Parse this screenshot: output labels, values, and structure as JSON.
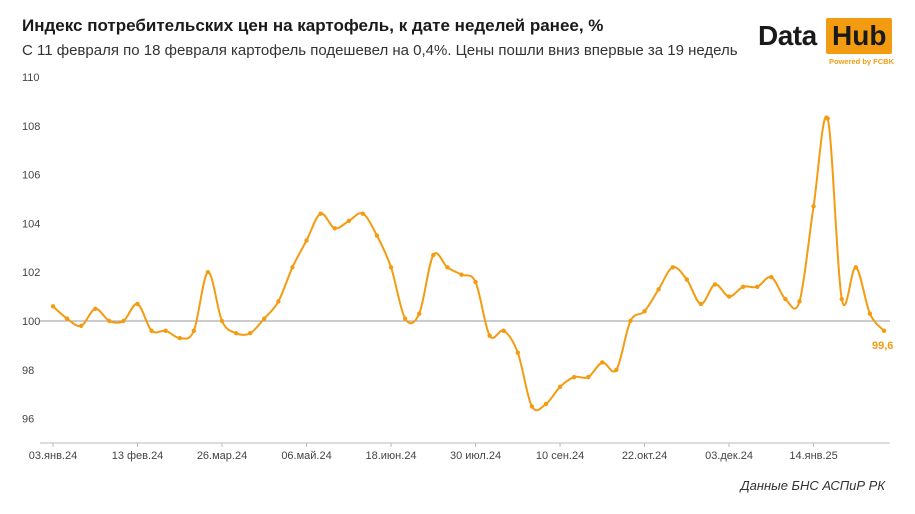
{
  "title": "Индекс потребительских цен на картофель, к дате неделей ранее, %",
  "subtitle": "С 11 февраля по 18 февраля картофель подешевел на 0,4%. Цены пошли вниз впервые за 19 недель",
  "logo": {
    "word1": "Data",
    "word2": "Hub",
    "tagline": "Powered by FCBK"
  },
  "source": "Данные БНС АСПиР РК",
  "colors": {
    "line": "#f39c12",
    "reference": "#999999",
    "axis": "#bbbbbb"
  },
  "chart_data": {
    "type": "line",
    "title": "Индекс потребительских цен на картофель, к дате неделей ранее, %",
    "ylim": [
      95,
      110
    ],
    "yticks": [
      96,
      98,
      100,
      102,
      104,
      106,
      108,
      110
    ],
    "reference_line": 100,
    "xtick_labels": [
      "03.янв.24",
      "13 фев.24",
      "26.мар.24",
      "06.май.24",
      "18.июн.24",
      "30 июл.24",
      "10 сен.24",
      "22.окт.24",
      "03.дек.24",
      "14.янв.25"
    ],
    "xtick_index": [
      0,
      6,
      12,
      18,
      24,
      30,
      36,
      42,
      48,
      54
    ],
    "values": [
      100.6,
      100.1,
      99.8,
      100.5,
      100.0,
      100.0,
      100.7,
      99.6,
      99.6,
      99.3,
      99.6,
      102.0,
      100.0,
      99.5,
      99.5,
      100.1,
      100.8,
      102.2,
      103.3,
      104.4,
      103.8,
      104.1,
      104.4,
      103.5,
      102.2,
      100.1,
      100.3,
      102.7,
      102.2,
      101.9,
      101.6,
      99.4,
      99.6,
      98.7,
      96.5,
      96.6,
      97.3,
      97.7,
      97.7,
      98.3,
      98.0,
      100.0,
      100.4,
      101.3,
      102.2,
      101.7,
      100.7,
      101.5,
      101.0,
      101.4,
      101.4,
      101.8,
      100.9,
      100.8,
      104.7,
      108.3,
      100.9,
      102.2,
      100.3,
      99.6
    ],
    "last_label": "99,6"
  }
}
